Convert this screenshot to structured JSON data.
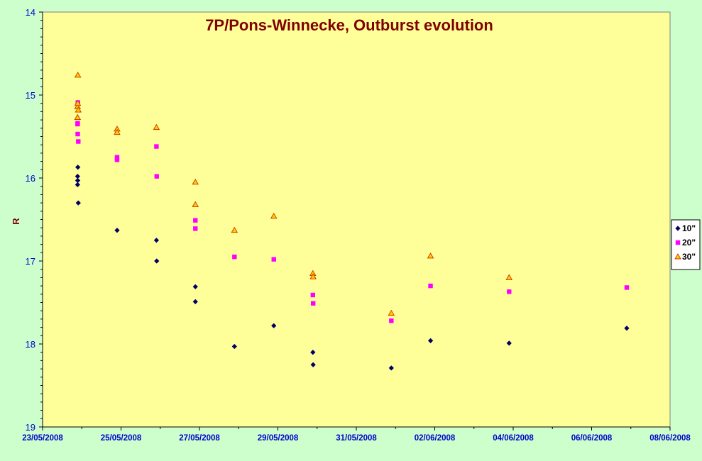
{
  "chart_data": {
    "type": "scatter",
    "title": "7P/Pons-Winnecke, Outburst evolution",
    "xlabel": "",
    "ylabel": "R",
    "ylim": [
      14,
      19
    ],
    "y_inverted": true,
    "y_ticks": [
      "14",
      "15",
      "16",
      "17",
      "18",
      "19"
    ],
    "xlim": [
      "23/05/2008",
      "08/06/2008"
    ],
    "x_ticks": [
      "23/05/2008",
      "25/05/2008",
      "27/05/2008",
      "29/05/2008",
      "31/05/2008",
      "02/06/2008",
      "04/06/2008",
      "06/06/2008",
      "08/06/2008"
    ],
    "legend_position": "right",
    "grid": false,
    "series": [
      {
        "name": "10\"",
        "marker": "diamond",
        "color": "#000066",
        "points": [
          [
            "23/05/2008 21:25",
            15.98
          ],
          [
            "23/05/2008 21:25",
            16.08
          ],
          [
            "23/05/2008 21:30",
            16.03
          ],
          [
            "23/05/2008 21:35",
            15.87
          ],
          [
            "23/05/2008 21:50",
            16.3
          ],
          [
            "24/05/2008 21:35",
            16.63
          ],
          [
            "25/05/2008 21:40",
            16.75
          ],
          [
            "25/05/2008 21:50",
            17.0
          ],
          [
            "26/05/2008 21:30",
            17.31
          ],
          [
            "26/05/2008 21:30",
            17.49
          ],
          [
            "27/05/2008 21:25",
            18.03
          ],
          [
            "28/05/2008 21:30",
            17.78
          ],
          [
            "29/05/2008 21:25",
            18.1
          ],
          [
            "29/05/2008 21:35",
            18.25
          ],
          [
            "31/05/2008 21:25",
            18.29
          ],
          [
            "01/06/2008 21:25",
            17.96
          ],
          [
            "03/06/2008 21:30",
            17.99
          ],
          [
            "06/06/2008 21:30",
            17.81
          ]
        ]
      },
      {
        "name": "20\"",
        "marker": "square",
        "color": "#ff00ff",
        "points": [
          [
            "23/05/2008 21:25",
            15.35
          ],
          [
            "23/05/2008 21:30",
            15.47
          ],
          [
            "23/05/2008 21:30",
            15.34
          ],
          [
            "23/05/2008 21:35",
            15.09
          ],
          [
            "23/05/2008 21:50",
            15.56
          ],
          [
            "24/05/2008 21:35",
            15.75
          ],
          [
            "24/05/2008 21:35",
            15.78
          ],
          [
            "25/05/2008 21:40",
            15.62
          ],
          [
            "25/05/2008 21:50",
            15.98
          ],
          [
            "26/05/2008 21:30",
            16.51
          ],
          [
            "26/05/2008 21:30",
            16.61
          ],
          [
            "27/05/2008 21:25",
            16.95
          ],
          [
            "28/05/2008 21:30",
            16.98
          ],
          [
            "29/05/2008 21:25",
            17.41
          ],
          [
            "29/05/2008 21:35",
            17.51
          ],
          [
            "31/05/2008 21:25",
            17.72
          ],
          [
            "01/06/2008 21:25",
            17.3
          ],
          [
            "03/06/2008 21:30",
            17.37
          ],
          [
            "06/06/2008 21:30",
            17.32
          ]
        ]
      },
      {
        "name": "30\"",
        "marker": "triangle",
        "color": "#cc3300",
        "fill": "#ffcc00",
        "points": [
          [
            "23/05/2008 21:25",
            15.14
          ],
          [
            "23/05/2008 21:25",
            15.27
          ],
          [
            "23/05/2008 21:30",
            15.1
          ],
          [
            "23/05/2008 21:35",
            14.76
          ],
          [
            "23/05/2008 21:50",
            15.18
          ],
          [
            "24/05/2008 21:35",
            15.41
          ],
          [
            "24/05/2008 21:35",
            15.45
          ],
          [
            "25/05/2008 21:40",
            15.39
          ],
          [
            "26/05/2008 21:30",
            16.05
          ],
          [
            "26/05/2008 21:30",
            16.32
          ],
          [
            "27/05/2008 21:25",
            16.63
          ],
          [
            "28/05/2008 21:30",
            16.46
          ],
          [
            "29/05/2008 21:25",
            17.15
          ],
          [
            "29/05/2008 21:35",
            17.19
          ],
          [
            "31/05/2008 21:25",
            17.63
          ],
          [
            "01/06/2008 21:25",
            16.94
          ],
          [
            "03/06/2008 21:30",
            17.2
          ]
        ]
      }
    ]
  },
  "colors": {
    "background": "#ccffcc",
    "plot_area": "#ffff99",
    "title": "#800000",
    "tick_labels": "#0000cc"
  }
}
